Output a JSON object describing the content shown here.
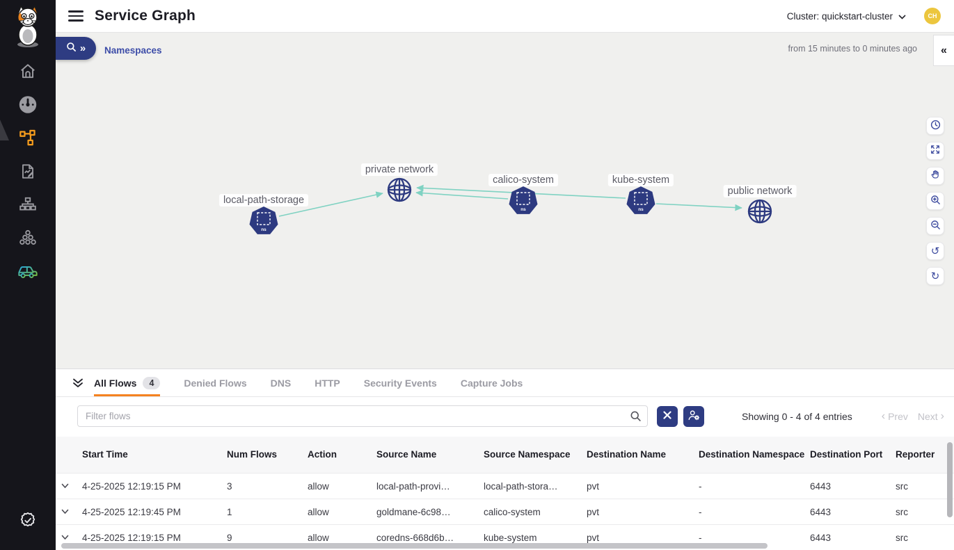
{
  "header": {
    "title": "Service Graph",
    "cluster_selector": "Cluster: quickstart-cluster",
    "avatar_initials": "CH"
  },
  "toolbar": {
    "breadcrumb": "Namespaces",
    "time_range": "from 15 minutes to 0 minutes ago",
    "collapse_right_panel_icon": "chevrons-left"
  },
  "sidebar": {
    "items": [
      {
        "icon": "home-icon"
      },
      {
        "icon": "dashboard-gauge-icon"
      },
      {
        "icon": "service-graph-icon",
        "active": true
      },
      {
        "icon": "policies-report-icon"
      },
      {
        "icon": "network-tree-icon"
      },
      {
        "icon": "clusters-icon"
      },
      {
        "icon": "car-icon"
      },
      {
        "icon": "certificate-check-icon"
      }
    ]
  },
  "graph": {
    "nodes": [
      {
        "label": "local-path-storage",
        "type": "namespace",
        "badge": "ns"
      },
      {
        "label": "private network",
        "type": "network"
      },
      {
        "label": "calico-system",
        "type": "namespace",
        "badge": "ns"
      },
      {
        "label": "kube-system",
        "type": "namespace",
        "badge": "ns"
      },
      {
        "label": "public network",
        "type": "network"
      }
    ],
    "edges": [
      {
        "from": "local-path-storage",
        "to": "private network"
      },
      {
        "from": "calico-system",
        "to": "private network"
      },
      {
        "from": "kube-system",
        "to": "private network"
      },
      {
        "from": "kube-system",
        "to": "public network"
      }
    ],
    "tools": [
      "time-settings",
      "fit-to-screen",
      "pan",
      "zoom-in",
      "zoom-out",
      "undo",
      "refresh"
    ]
  },
  "flows_panel": {
    "tabs": [
      {
        "label": "All Flows",
        "badge": "4",
        "active": true
      },
      {
        "label": "Denied Flows"
      },
      {
        "label": "DNS"
      },
      {
        "label": "HTTP"
      },
      {
        "label": "Security Events"
      },
      {
        "label": "Capture Jobs"
      }
    ],
    "filter_placeholder": "Filter flows",
    "showing_text": "Showing 0 - 4 of 4 entries",
    "prev_label": "Prev",
    "next_label": "Next",
    "table": {
      "columns": [
        "Start Time",
        "Num Flows",
        "Action",
        "Source Name",
        "Source Namespace",
        "Destination Name",
        "Destination Namespace",
        "Destination Port",
        "Reporter"
      ],
      "rows": [
        [
          "4-25-2025 12:19:15 PM",
          "3",
          "allow",
          "local-path-provi…",
          "local-path-stora…",
          "pvt",
          "-",
          "6443",
          "src"
        ],
        [
          "4-25-2025 12:19:45 PM",
          "1",
          "allow",
          "goldmane-6c98…",
          "calico-system",
          "pvt",
          "-",
          "6443",
          "src"
        ],
        [
          "4-25-2025 12:19:15 PM",
          "9",
          "allow",
          "coredns-668d6b…",
          "kube-system",
          "pvt",
          "-",
          "6443",
          "src"
        ]
      ]
    }
  },
  "colors": {
    "navy_accent": "#2e3c82",
    "node_navy": "#2d3a80",
    "active_tab_orange": "#f58220",
    "sidebar_active_orange": "#f59c1d",
    "edge_teal": "#7fd2c2",
    "avatar_yellow": "#ecc63e",
    "sidebar_bg": "#15151b",
    "canvas_bg": "#f0f0ee"
  }
}
